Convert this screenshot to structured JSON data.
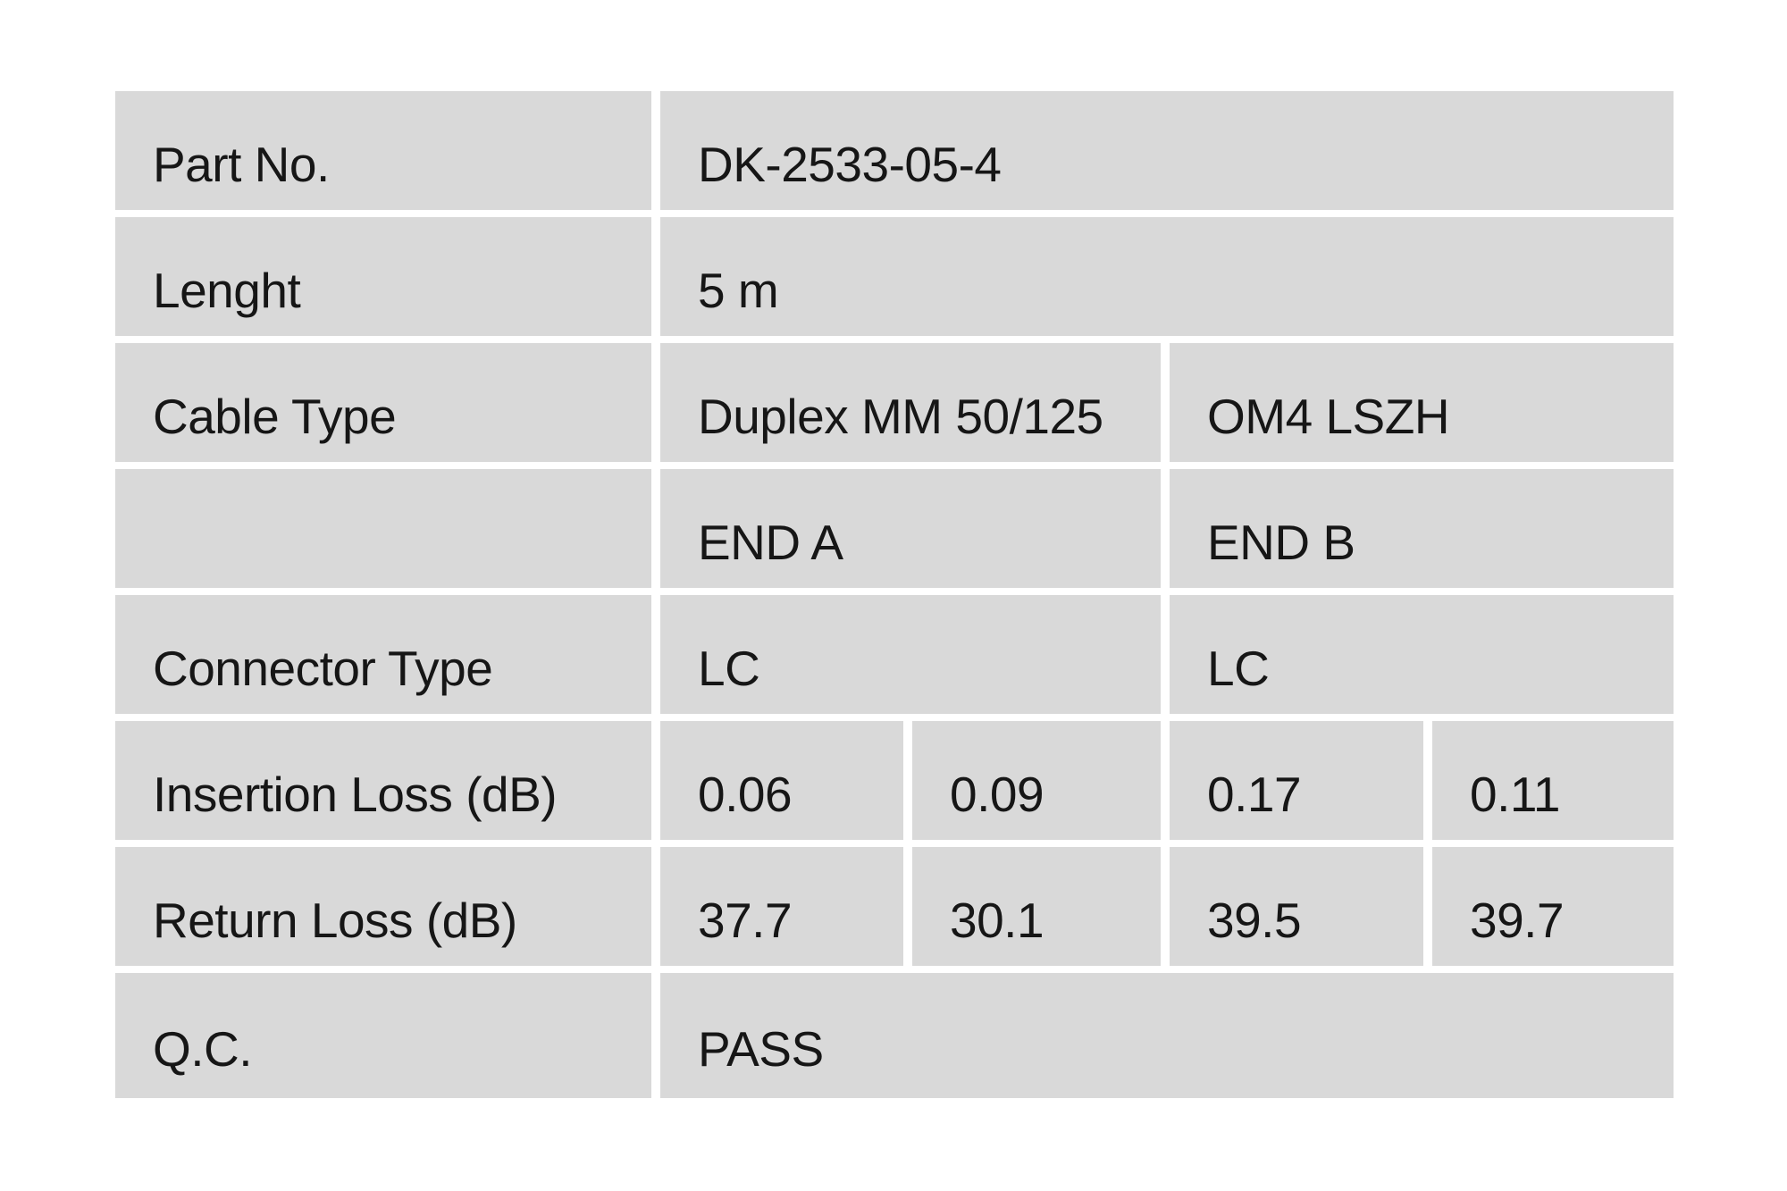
{
  "page": {
    "background_color": "#ffffff",
    "cell_color": "#d9d9d9",
    "text_color": "#161616"
  },
  "table": {
    "rows": [
      {
        "label": "Part No.",
        "values": [
          "DK-2533-05-4"
        ]
      },
      {
        "label": "Lenght",
        "values": [
          "5 m"
        ]
      },
      {
        "label": "Cable Type",
        "values": [
          "Duplex MM 50/125",
          "OM4 LSZH"
        ]
      },
      {
        "label": "",
        "values": [
          "END A",
          "END B"
        ]
      },
      {
        "label": "Connector Type",
        "values": [
          "LC",
          "LC"
        ]
      },
      {
        "label": "Insertion Loss (dB)",
        "values": [
          "0.06",
          "0.09",
          "0.17",
          "0.11"
        ]
      },
      {
        "label": "Return Loss (dB)",
        "values": [
          "37.7",
          "30.1",
          "39.5",
          "39.7"
        ]
      },
      {
        "label": "Q.C.",
        "values": [
          "PASS"
        ]
      }
    ]
  }
}
